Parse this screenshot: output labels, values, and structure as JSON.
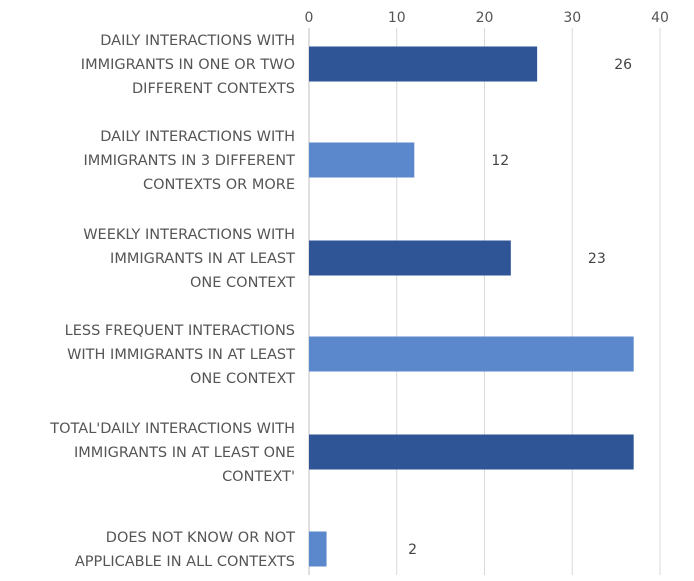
{
  "chart_data": {
    "type": "bar",
    "orientation": "horizontal",
    "x_axis_position": "top",
    "xlim": [
      0,
      40
    ],
    "xticks": [
      0,
      10,
      20,
      30,
      40
    ],
    "grid": true,
    "legend": "none",
    "title": "",
    "xlabel": "",
    "ylabel": "",
    "categories": [
      [
        "DAILY INTERACTIONS WITH",
        "IMMIGRANTS IN ONE OR TWO",
        "DIFFERENT CONTEXTS"
      ],
      [
        "DAILY INTERACTIONS WITH",
        "IMMIGRANTS IN 3 DIFFERENT",
        "CONTEXTS OR MORE"
      ],
      [
        "WEEKLY INTERACTIONS WITH",
        "IMMIGRANTS  IN AT LEAST",
        "ONE CONTEXT"
      ],
      [
        "LESS FREQUENT INTERACTIONS",
        "WITH IMMIGRANTS IN AT LEAST",
        "ONE CONTEXT"
      ],
      [
        "TOTAL'DAILY INTERACTIONS WITH",
        "IMMIGRANTS IN AT LEAST ONE",
        "CONTEXT'"
      ],
      [
        "DOES NOT KNOW OR NOT",
        "APPLICABLE IN ALL CONTEXTS"
      ]
    ],
    "values": [
      26,
      12,
      23,
      37,
      37,
      2
    ],
    "bar_colors": [
      "#2f5597",
      "#5b87cc",
      "#2f5597",
      "#5b87cc",
      "#2f5597",
      "#5b87cc"
    ]
  }
}
